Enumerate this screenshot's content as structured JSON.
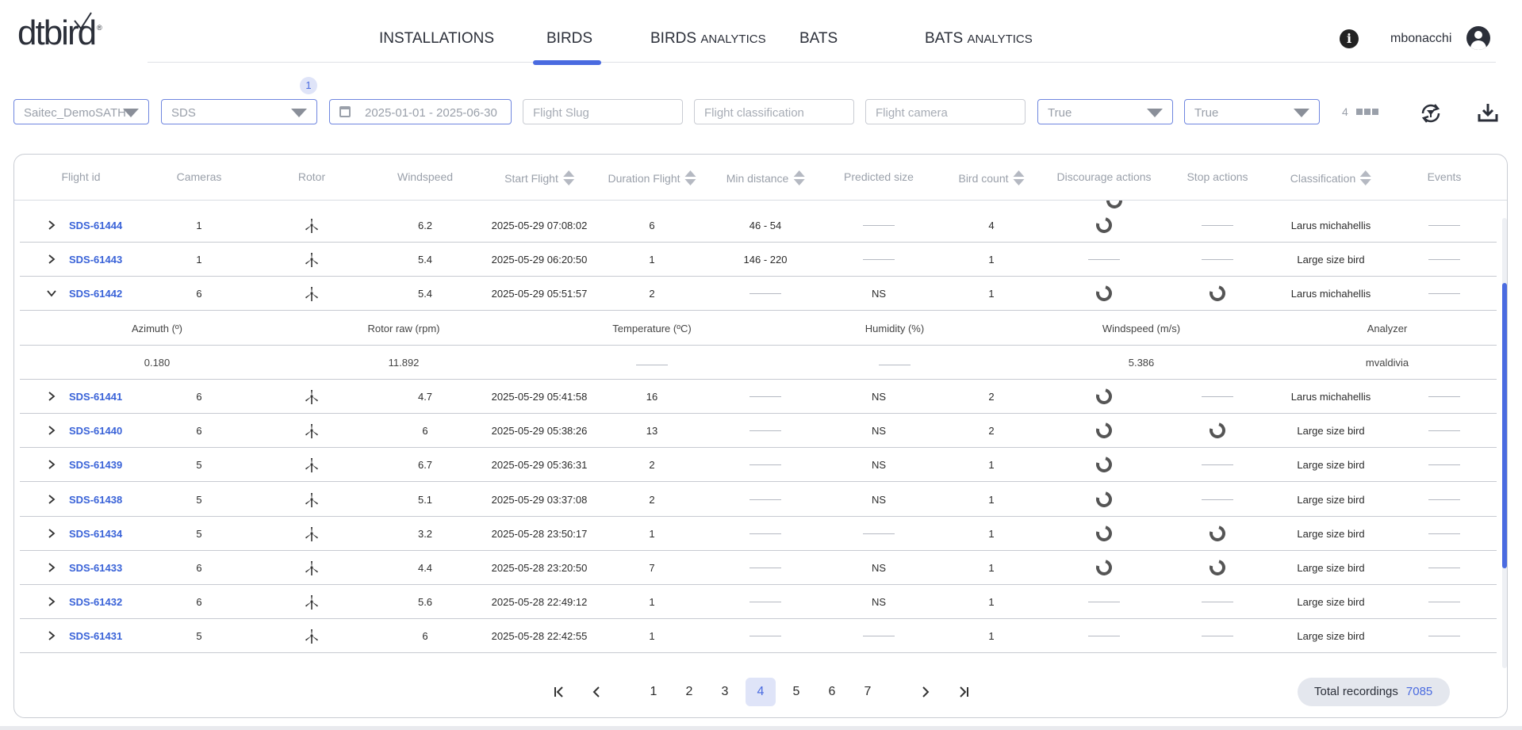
{
  "logo": {
    "text": "dtbird",
    "reg": "®"
  },
  "nav": {
    "items": [
      {
        "label": "INSTALLATIONS",
        "suffix": ""
      },
      {
        "label": "BIRDS",
        "suffix": ""
      },
      {
        "label": "BIRDS",
        "suffix": "ANALYTICS"
      },
      {
        "label": "BATS",
        "suffix": ""
      },
      {
        "label": "BATS",
        "suffix": "ANALYTICS"
      }
    ],
    "active_index": 1
  },
  "user": {
    "name": "mbonacchi"
  },
  "filters": {
    "badge": "1",
    "site": "Saitec_DemoSATH",
    "project": "SDS",
    "dates": "2025-01-01 - 2025-06-30",
    "slug_placeholder": "Flight Slug",
    "classification_placeholder": "Flight classification",
    "camera_placeholder": "Flight camera",
    "bool1": "True",
    "bool2": "True",
    "columns_count": "4"
  },
  "table": {
    "headers": [
      "Flight id",
      "Cameras",
      "Rotor",
      "Windspeed",
      "Start Flight",
      "Duration Flight",
      "Min distance",
      "Predicted size",
      "Bird count",
      "Discourage actions",
      "Stop actions",
      "Classification",
      "Events"
    ],
    "rows": [
      {
        "id": "SDS-61444",
        "cameras": "1",
        "windspeed": "6.2",
        "start": "2025-05-29 07:08:02",
        "duration": "6",
        "min_distance": "46  -  54",
        "predicted_size": "",
        "bird_count": "4",
        "discourage": true,
        "stop": false,
        "classification": "Larus michahellis",
        "expanded": false
      },
      {
        "id": "SDS-61443",
        "cameras": "1",
        "windspeed": "5.4",
        "start": "2025-05-29 06:20:50",
        "duration": "1",
        "min_distance": "146  -  220",
        "predicted_size": "",
        "bird_count": "1",
        "discourage": false,
        "stop": false,
        "classification": "Large size bird",
        "expanded": false
      },
      {
        "id": "SDS-61442",
        "cameras": "6",
        "windspeed": "5.4",
        "start": "2025-05-29 05:51:57",
        "duration": "2",
        "min_distance": "",
        "predicted_size": "NS",
        "bird_count": "1",
        "discourage": true,
        "stop": true,
        "classification": "Larus michahellis",
        "expanded": true
      }
    ],
    "detail": {
      "headers": [
        "Azimuth (º)",
        "Rotor raw (rpm)",
        "Temperature (ºC)",
        "Humidity (%)",
        "Windspeed (m/s)",
        "Analyzer"
      ],
      "values": [
        "0.180",
        "11.892",
        "",
        "",
        "5.386",
        "mvaldivia"
      ]
    },
    "rows_after": [
      {
        "id": "SDS-61441",
        "cameras": "6",
        "windspeed": "4.7",
        "start": "2025-05-29 05:41:58",
        "duration": "16",
        "min_distance": "",
        "predicted_size": "NS",
        "bird_count": "2",
        "discourage": true,
        "stop": false,
        "classification": "Larus michahellis"
      },
      {
        "id": "SDS-61440",
        "cameras": "6",
        "windspeed": "6",
        "start": "2025-05-29 05:38:26",
        "duration": "13",
        "min_distance": "",
        "predicted_size": "NS",
        "bird_count": "2",
        "discourage": true,
        "stop": true,
        "classification": "Large size bird"
      },
      {
        "id": "SDS-61439",
        "cameras": "5",
        "windspeed": "6.7",
        "start": "2025-05-29 05:36:31",
        "duration": "2",
        "min_distance": "",
        "predicted_size": "NS",
        "bird_count": "1",
        "discourage": true,
        "stop": false,
        "classification": "Large size bird"
      },
      {
        "id": "SDS-61438",
        "cameras": "5",
        "windspeed": "5.1",
        "start": "2025-05-29 03:37:08",
        "duration": "2",
        "min_distance": "",
        "predicted_size": "NS",
        "bird_count": "1",
        "discourage": true,
        "stop": false,
        "classification": "Large size bird"
      },
      {
        "id": "SDS-61434",
        "cameras": "5",
        "windspeed": "3.2",
        "start": "2025-05-28 23:50:17",
        "duration": "1",
        "min_distance": "",
        "predicted_size": "",
        "bird_count": "1",
        "discourage": true,
        "stop": true,
        "classification": "Large size bird"
      },
      {
        "id": "SDS-61433",
        "cameras": "6",
        "windspeed": "4.4",
        "start": "2025-05-28 23:20:50",
        "duration": "7",
        "min_distance": "",
        "predicted_size": "NS",
        "bird_count": "1",
        "discourage": true,
        "stop": true,
        "classification": "Large size bird"
      },
      {
        "id": "SDS-61432",
        "cameras": "6",
        "windspeed": "5.6",
        "start": "2025-05-28 22:49:12",
        "duration": "1",
        "min_distance": "",
        "predicted_size": "NS",
        "bird_count": "1",
        "discourage": false,
        "stop": false,
        "classification": "Large size bird"
      },
      {
        "id": "SDS-61431",
        "cameras": "5",
        "windspeed": "6",
        "start": "2025-05-28 22:42:55",
        "duration": "1",
        "min_distance": "",
        "predicted_size": "",
        "bird_count": "1",
        "discourage": false,
        "stop": false,
        "classification": "Large size bird"
      }
    ]
  },
  "pagination": {
    "pages": [
      "1",
      "2",
      "3",
      "4",
      "5",
      "6",
      "7"
    ],
    "current": "4"
  },
  "total": {
    "label": "Total recordings",
    "value": "7085"
  },
  "colors": {
    "accent": "#4a6be0",
    "link": "#3a63d8"
  },
  "icons": [
    "info-icon",
    "user-avatar-icon",
    "reset-filters-icon",
    "download-icon",
    "wind-turbine-icon",
    "discourage-ring-icon",
    "stop-ring-icon",
    "chevron-right-icon",
    "chevron-down-icon"
  ]
}
